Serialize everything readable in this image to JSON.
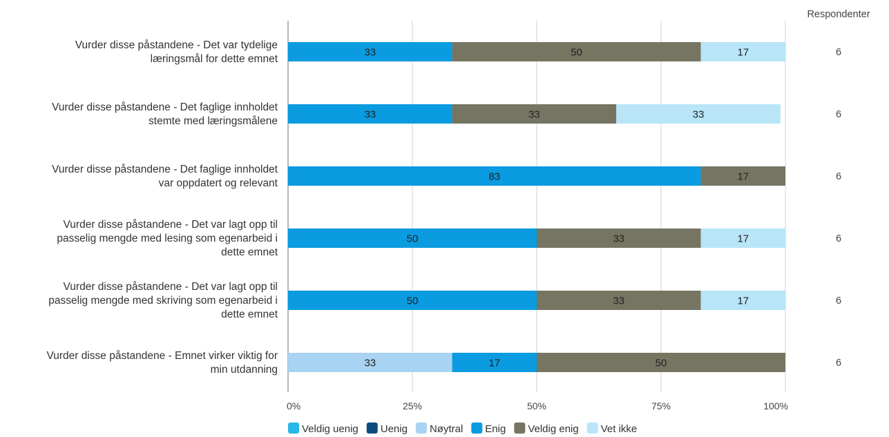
{
  "chart_data": {
    "type": "bar",
    "orientation": "horizontal",
    "stacked": "percent",
    "categories": [
      [
        "Vurder disse påstandene  - Det var tydelige",
        "læringsmål for dette emnet"
      ],
      [
        "Vurder disse påstandene  - Det faglige innholdet",
        "stemte med læringsmålene"
      ],
      [
        "Vurder disse påstandene  - Det faglige innholdet",
        "var oppdatert og relevant"
      ],
      [
        "Vurder disse påstandene  - Det var lagt opp til",
        "passelig mengde med lesing som egenarbeid i",
        "dette emnet"
      ],
      [
        "Vurder disse påstandene  - Det var lagt opp til",
        "passelig mengde med skriving som egenarbeid i",
        "dette emnet"
      ],
      [
        "Vurder disse påstandene  - Emnet virker viktig for",
        "min utdanning"
      ]
    ],
    "series": [
      {
        "name": "Veldig uenig",
        "color": "#29b6e8",
        "values": [
          0,
          0,
          0,
          0,
          0,
          0
        ]
      },
      {
        "name": "Uenig",
        "color": "#0a4d7c",
        "values": [
          0,
          0,
          0,
          0,
          0,
          0
        ]
      },
      {
        "name": "Nøytral",
        "color": "#a9d3f2",
        "values": [
          0,
          0,
          0,
          0,
          0,
          33
        ]
      },
      {
        "name": "Enig",
        "color": "#0a9be0",
        "values": [
          33,
          33,
          83,
          50,
          50,
          17
        ]
      },
      {
        "name": "Veldig enig",
        "color": "#767562",
        "values": [
          50,
          33,
          17,
          33,
          33,
          50
        ]
      },
      {
        "name": "Vet ikke",
        "color": "#b8e5f8",
        "values": [
          17,
          33,
          0,
          17,
          17,
          0
        ]
      }
    ],
    "xlim": [
      0,
      100
    ],
    "x_ticks": [
      "0%",
      "25%",
      "50%",
      "75%",
      "100%"
    ],
    "grid": true,
    "legend": "bottom",
    "respondents": {
      "header": "Respondenter",
      "values": [
        "6",
        "6",
        "6",
        "6",
        "6",
        "6"
      ]
    }
  }
}
